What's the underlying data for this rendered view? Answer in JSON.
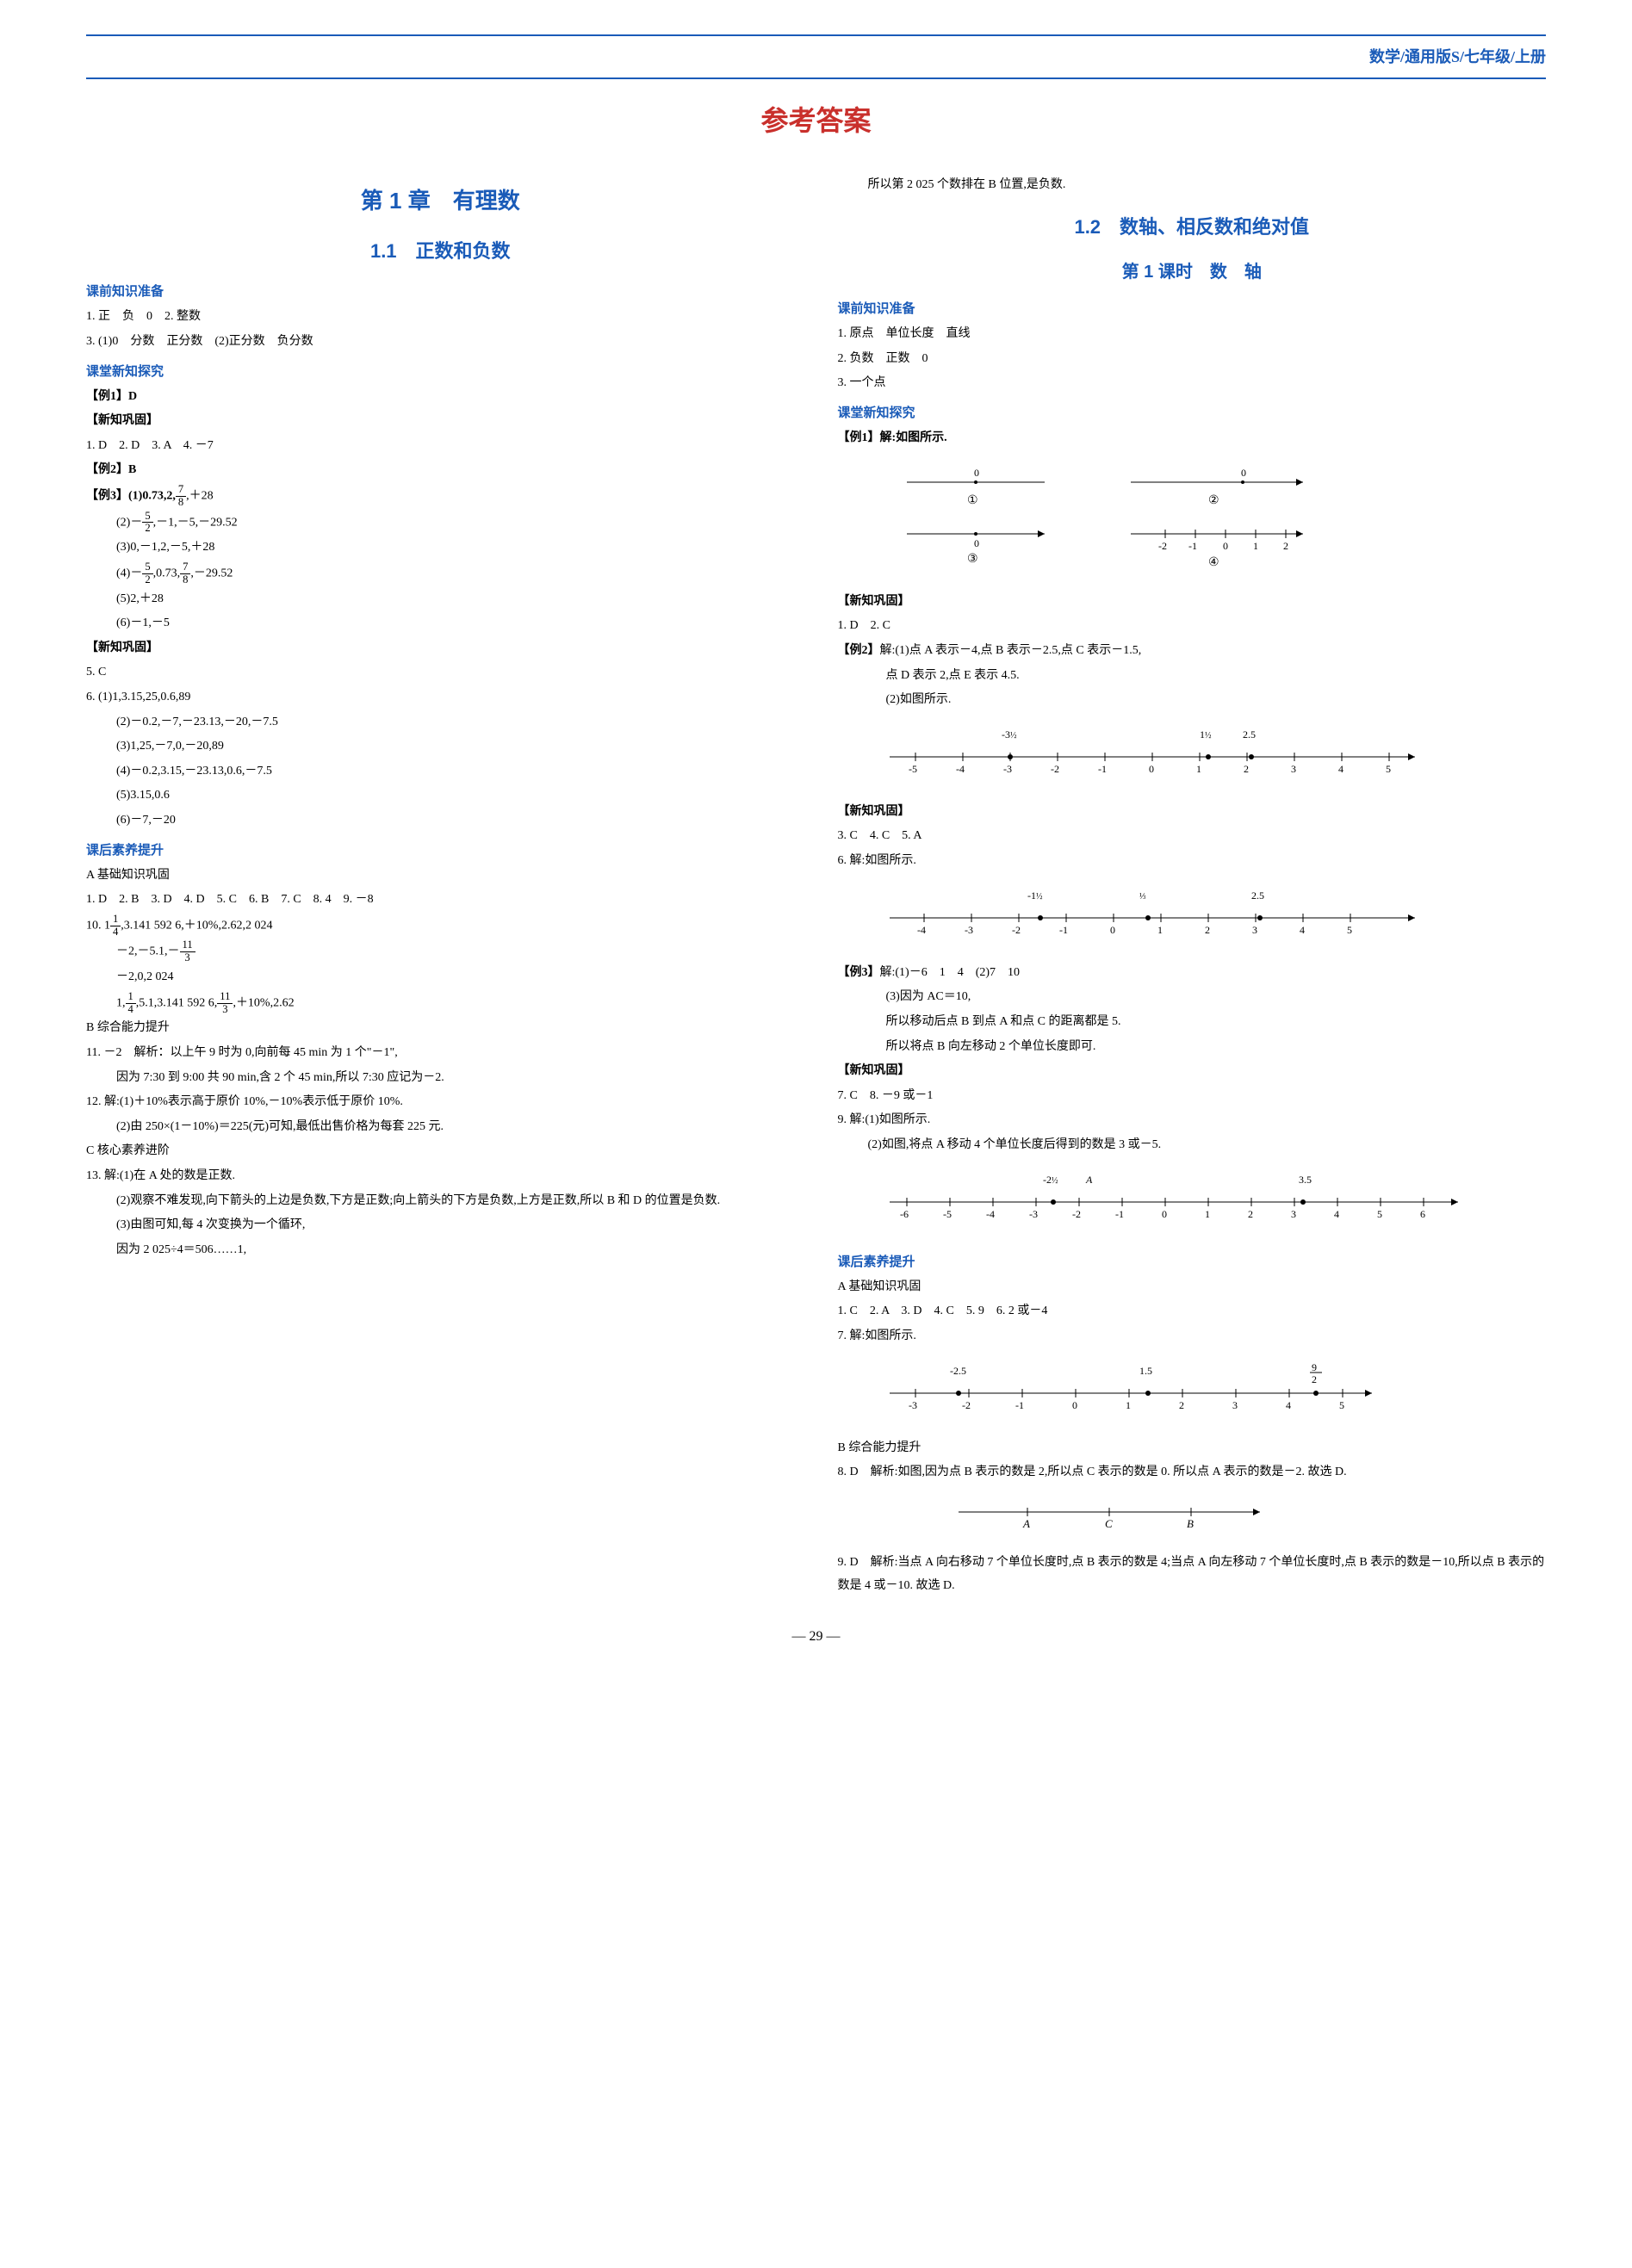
{
  "header": {
    "breadcrumb": "数学/通用版S/七年级/上册"
  },
  "main_title": "参考答案",
  "colors": {
    "heading_blue": "#1a5bb8",
    "title_red": "#c9302c",
    "text_black": "#000000",
    "background": "#ffffff"
  },
  "left": {
    "chapter": "第 1 章　有理数",
    "section": "1.1　正数和负数",
    "prep_heading": "课前知识准备",
    "prep": {
      "l1": "1. 正　负　0　2. 整数",
      "l2": "3. (1)0　分数　正分数　(2)正分数　负分数"
    },
    "explore_heading": "课堂新知探究",
    "ex1": "【例1】D",
    "consolidate1_heading": "【新知巩固】",
    "consolidate1": "1. D　2. D　3. A　4. －7",
    "ex2": "【例2】B",
    "ex3_head": "【例3】(1)0.73,2,",
    "ex3_1_tail": ",＋28",
    "ex3_2_pre": "(2)－",
    "ex3_2_tail": ",－1,－5,－29.52",
    "ex3_3": "(3)0,－1,2,－5,＋28",
    "ex3_4_pre": "(4)－",
    "ex3_4_mid": ",0.73,",
    "ex3_4_tail": ",－29.52",
    "ex3_5": "(5)2,＋28",
    "ex3_6": "(6)－1,－5",
    "consolidate2_heading": "【新知巩固】",
    "c2_5": "5. C",
    "c2_6_1": "6. (1)1,3.15,25,0.6,89",
    "c2_6_2": "(2)－0.2,－7,－23.13,－20,－7.5",
    "c2_6_3": "(3)1,25,－7,0,－20,89",
    "c2_6_4": "(4)－0.2,3.15,－23.13,0.6,－7.5",
    "c2_6_5": "(5)3.15,0.6",
    "c2_6_6": "(6)－7,－20",
    "after_heading": "课后素养提升",
    "after_A": "A 基础知识巩固",
    "A_line1": "1. D　2. B　3. D　4. D　5. C　6. B　7. C　8. 4　9. －8",
    "A_line2_head": "10. 1",
    "A_line2_mid": ",3.141 592 6,＋10%,2.62,2 024",
    "A_line3_pre": "－2,－5.1,－",
    "A_line4": "－2,0,2 024",
    "A_line5_head": "1,",
    "A_line5_mid": ",5.1,3.141 592 6,",
    "A_line5_tail": ",＋10%,2.62",
    "after_B": "B 综合能力提升",
    "B11": "11. －2　解析：以上午 9 时为 0,向前每 45 min 为 1 个\"－1\",",
    "B11b": "因为 7:30 到 9:00 共 90 min,含 2 个 45 min,所以 7:30 应记为－2.",
    "B12a": "12. 解:(1)＋10%表示高于原价 10%,－10%表示低于原价 10%.",
    "B12b": "(2)由 250×(1－10%)＝225(元)可知,最低出售价格为每套 225 元.",
    "after_C": "C 核心素养进阶",
    "C13a": "13. 解:(1)在 A 处的数是正数.",
    "C13b": "(2)观察不难发现,向下箭头的上边是负数,下方是正数;向上箭头的下方是负数,上方是正数,所以 B 和 D 的位置是负数.",
    "C13c": "(3)由图可知,每 4 次变换为一个循环,",
    "C13d": "因为 2 025÷4＝506……1,"
  },
  "right": {
    "cont_line": "所以第 2 025 个数排在 B 位置,是负数.",
    "section": "1.2　数轴、相反数和绝对值",
    "subsection": "第 1 课时　数　轴",
    "prep_heading": "课前知识准备",
    "prep1": "1. 原点　单位长度　直线",
    "prep2": "2. 负数　正数　0",
    "prep3": "3. 一个点",
    "explore_heading": "课堂新知探究",
    "ex1_head": "【例1】解:如图所示.",
    "diagram1": {
      "labels": [
        "①",
        "②",
        "③",
        "④"
      ],
      "line1_point": "0",
      "line2_points": [
        "0"
      ],
      "line3_points": [
        "0"
      ],
      "line4_ticks": [
        "-2",
        "-1",
        "0",
        "1",
        "2"
      ]
    },
    "consolidate1_heading": "【新知巩固】",
    "c1": "1. D　2. C",
    "ex2a": "【例2】解:(1)点 A 表示－4,点 B 表示－2.5,点 C 表示－1.5,",
    "ex2b": "点 D 表示 2,点 E 表示 4.5.",
    "ex2c": "(2)如图所示.",
    "diagram2": {
      "top_labels_pre": "-3",
      "top_labels_mid_pre": "1",
      "top_labels_tail": "2.5",
      "ticks": [
        "-5",
        "-4",
        "-3",
        "-2",
        "-1",
        "0",
        "1",
        "2",
        "3",
        "4",
        "5"
      ]
    },
    "consolidate2_heading": "【新知巩固】",
    "c2_line": "3. C　4. C　5. A",
    "c2_6": "6. 解:如图所示.",
    "diagram3": {
      "top_pre1": "-1",
      "top_mid": "",
      "top_tail": "2.5",
      "ticks": [
        "-4",
        "-3",
        "-2",
        "-1",
        "0",
        "1",
        "2",
        "3",
        "4",
        "5"
      ]
    },
    "ex3a": "【例3】解:(1)－6　1　4　(2)7　10",
    "ex3b": "(3)因为 AC＝10,",
    "ex3c": "所以移动后点 B 到点 A 和点 C 的距离都是 5.",
    "ex3d": "所以将点 B 向左移动 2 个单位长度即可.",
    "consolidate3_heading": "【新知巩固】",
    "c3_7": "7. C　8. －9 或－1",
    "c3_9a": "9. 解:(1)如图所示.",
    "c3_9b": "(2)如图,将点 A 移动 4 个单位长度后得到的数是 3 或－5.",
    "diagram4": {
      "label_A_pre": "-2",
      "label_A_suffix": "A",
      "label_35": "3.5",
      "ticks": [
        "-6",
        "-5",
        "-4",
        "-3",
        "-2",
        "-1",
        "0",
        "1",
        "2",
        "3",
        "4",
        "5",
        "6"
      ]
    },
    "after_heading": "课后素养提升",
    "after_A": "A 基础知识巩固",
    "A_line": "1. C　2. A　3. D　4. C　5. 9　6. 2 或－4",
    "A_7": "7. 解:如图所示.",
    "diagram5": {
      "top_l": "-2.5",
      "top_m": "1.5",
      "ticks": [
        "-3",
        "-2",
        "-1",
        "0",
        "1",
        "2",
        "3",
        "4",
        "5"
      ]
    },
    "after_B": "B 综合能力提升",
    "B8a": "8. D　解析:如图,因为点 B 表示的数是 2,所以点 C 表示的数是 0. 所以点 A 表示的数是－2. 故选 D.",
    "diagram6": {
      "labels": [
        "A",
        "C",
        "B"
      ]
    },
    "B9": "9. D　解析:当点 A 向右移动 7 个单位长度时,点 B 表示的数是 4;当点 A 向左移动 7 个单位长度时,点 B 表示的数是－10,所以点 B 表示的数是 4 或－10. 故选 D."
  },
  "page_number": "29"
}
